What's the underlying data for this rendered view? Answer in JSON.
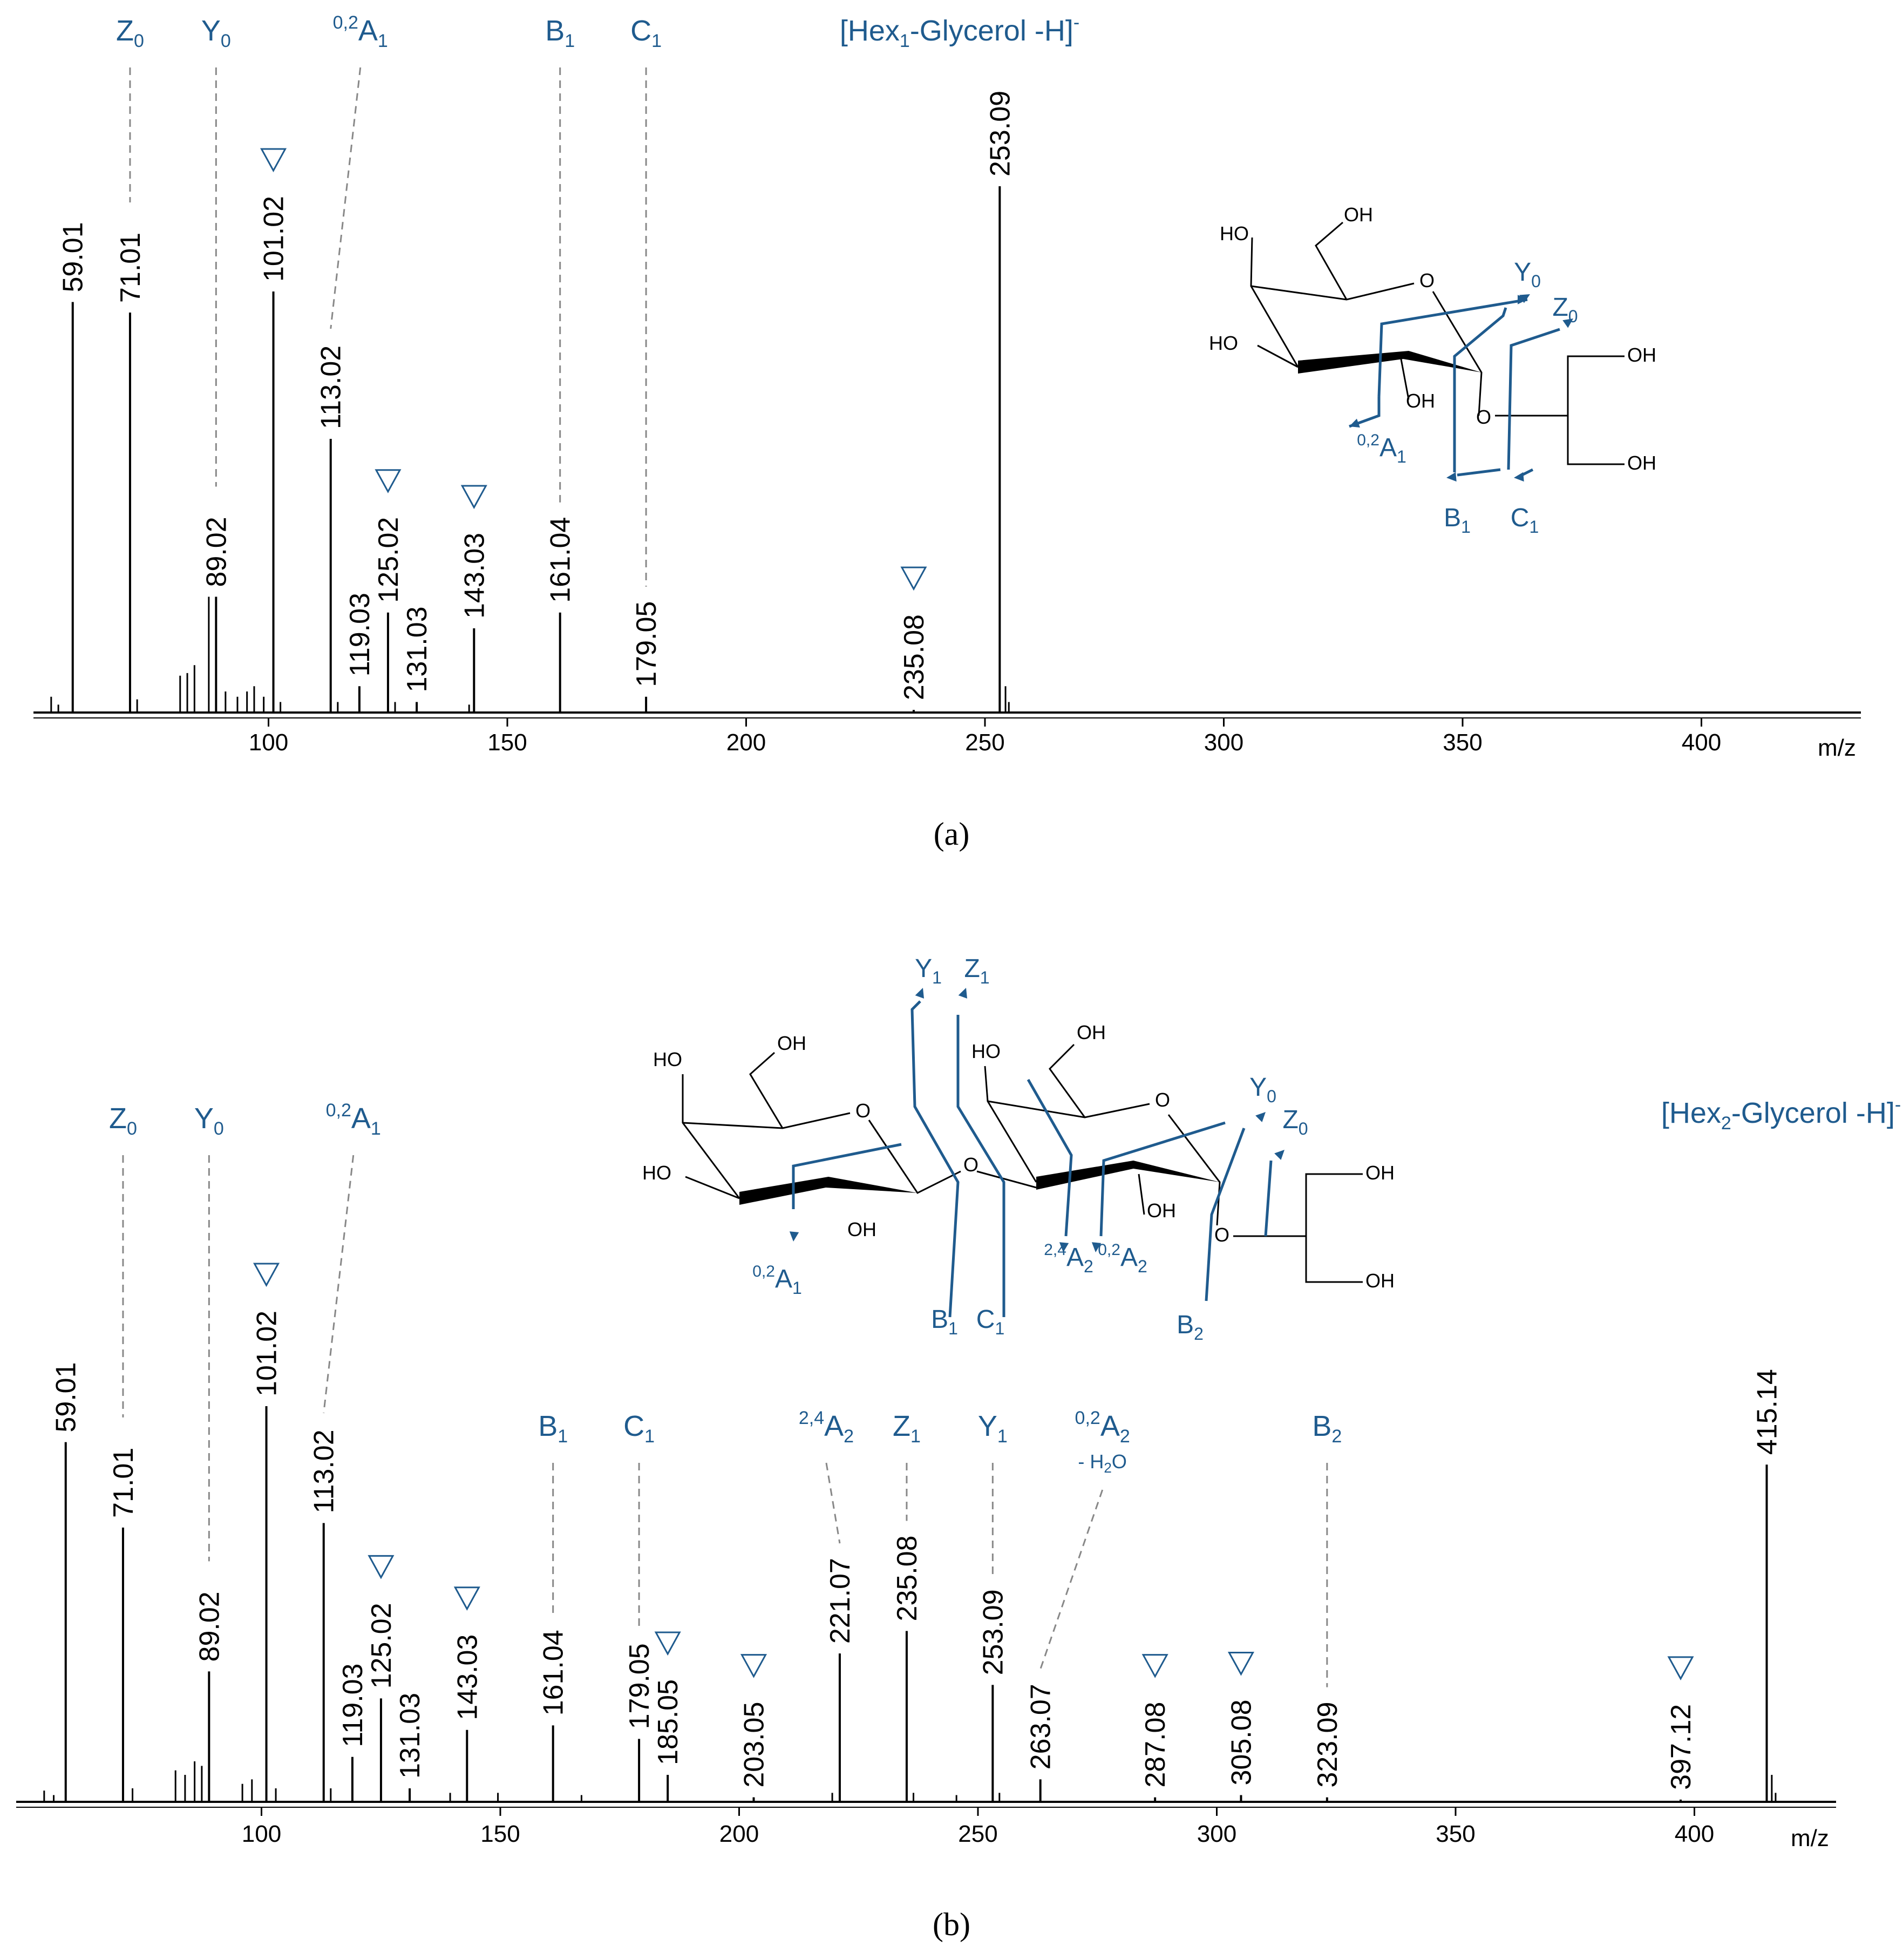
{
  "figure": {
    "accent_color": "#1f5b8e",
    "line_color": "#000000",
    "dash_color": "#888888",
    "neutral_loss_icon": "triangle-down-icon"
  },
  "chart_data": [
    {
      "type": "bar",
      "panel": "a",
      "caption": "(a)",
      "xlabel": "m/z",
      "ylabel": "",
      "xlim": [
        52,
        433
      ],
      "ylim": [
        0,
        100
      ],
      "xticks": [
        100,
        150,
        200,
        250,
        300,
        350,
        400
      ],
      "precursor_label": {
        "text": "[Hex1-Glycerol -H]-",
        "main": "[Hex",
        "sub": "1",
        "rest": "-Glycerol -H]",
        "sup": "-"
      },
      "peaks": [
        {
          "mz": 59.01,
          "label": "59.01",
          "intensity": 78
        },
        {
          "mz": 71.01,
          "label": "71.01",
          "intensity": 76
        },
        {
          "mz": 89.02,
          "label": "89.02",
          "intensity": 22
        },
        {
          "mz": 101.02,
          "label": "101.02",
          "intensity": 80
        },
        {
          "mz": 113.02,
          "label": "113.02",
          "intensity": 52
        },
        {
          "mz": 119.03,
          "label": "119.03",
          "intensity": 5
        },
        {
          "mz": 125.02,
          "label": "125.02",
          "intensity": 19
        },
        {
          "mz": 131.03,
          "label": "131.03",
          "intensity": 2
        },
        {
          "mz": 143.03,
          "label": "143.03",
          "intensity": 16
        },
        {
          "mz": 161.04,
          "label": "161.04",
          "intensity": 19
        },
        {
          "mz": 179.05,
          "label": "179.05",
          "intensity": 3
        },
        {
          "mz": 235.08,
          "label": "235.08",
          "intensity": 0.5
        },
        {
          "mz": 253.09,
          "label": "253.09",
          "intensity": 100
        }
      ],
      "minor_peaks": [
        {
          "mz": 54.5,
          "intensity": 3
        },
        {
          "mz": 56.0,
          "intensity": 1.5
        },
        {
          "mz": 72.5,
          "intensity": 2.5
        },
        {
          "mz": 81.5,
          "intensity": 7
        },
        {
          "mz": 83.0,
          "intensity": 7.5
        },
        {
          "mz": 84.5,
          "intensity": 9
        },
        {
          "mz": 87.5,
          "intensity": 22
        },
        {
          "mz": 91.0,
          "intensity": 4
        },
        {
          "mz": 93.5,
          "intensity": 3
        },
        {
          "mz": 95.5,
          "intensity": 4
        },
        {
          "mz": 97.0,
          "intensity": 5
        },
        {
          "mz": 99.0,
          "intensity": 3
        },
        {
          "mz": 102.5,
          "intensity": 2
        },
        {
          "mz": 114.5,
          "intensity": 2
        },
        {
          "mz": 126.5,
          "intensity": 2
        },
        {
          "mz": 142.0,
          "intensity": 1.5
        },
        {
          "mz": 254.3,
          "intensity": 5
        },
        {
          "mz": 255.0,
          "intensity": 2
        }
      ],
      "neutral_loss_marks": [
        101.02,
        125.02,
        143.03,
        235.08
      ],
      "fragment_labels": [
        {
          "id": "z0",
          "base": "Z",
          "sub": "0",
          "pre": "",
          "mz": 71.01
        },
        {
          "id": "y0",
          "base": "Y",
          "sub": "0",
          "pre": "",
          "mz": 89.02
        },
        {
          "id": "a1-02",
          "base": "A",
          "sub": "1",
          "pre": "0,2",
          "mz": 113.02
        },
        {
          "id": "b1",
          "base": "B",
          "sub": "1",
          "pre": "",
          "mz": 161.04
        },
        {
          "id": "c1",
          "base": "C",
          "sub": "1",
          "pre": "",
          "mz": 179.05
        }
      ],
      "structure_labels": {
        "oh": "OH",
        "ho": "HO",
        "o": "O",
        "y0": "Y",
        "z0": "Z",
        "a1": "A",
        "b1": "B",
        "c1": "C",
        "s0": "0",
        "s1": "1",
        "p02": "0,2"
      }
    },
    {
      "type": "bar",
      "panel": "b",
      "caption": "(b)",
      "xlabel": "m/z",
      "ylabel": "",
      "xlim": [
        52,
        433
      ],
      "ylim": [
        0,
        100
      ],
      "xticks": [
        100,
        150,
        200,
        250,
        300,
        350,
        400
      ],
      "precursor_label": {
        "text": "[Hex2-Glycerol -H]-",
        "main": "[Hex",
        "sub": "2",
        "rest": "-Glycerol -H]",
        "sup": "-"
      },
      "peaks": [
        {
          "mz": 59.01,
          "label": "59.01",
          "intensity": 80
        },
        {
          "mz": 71.01,
          "label": "71.01",
          "intensity": 61
        },
        {
          "mz": 89.02,
          "label": "89.02",
          "intensity": 29
        },
        {
          "mz": 101.02,
          "label": "101.02",
          "intensity": 88
        },
        {
          "mz": 113.02,
          "label": "113.02",
          "intensity": 62
        },
        {
          "mz": 119.03,
          "label": "119.03",
          "intensity": 10
        },
        {
          "mz": 125.02,
          "label": "125.02",
          "intensity": 23
        },
        {
          "mz": 131.03,
          "label": "131.03",
          "intensity": 3
        },
        {
          "mz": 143.03,
          "label": "143.03",
          "intensity": 16
        },
        {
          "mz": 161.04,
          "label": "161.04",
          "intensity": 17
        },
        {
          "mz": 179.05,
          "label": "179.05",
          "intensity": 14
        },
        {
          "mz": 185.05,
          "label": "185.05",
          "intensity": 6
        },
        {
          "mz": 203.05,
          "label": "203.05",
          "intensity": 1
        },
        {
          "mz": 221.07,
          "label": "221.07",
          "intensity": 33
        },
        {
          "mz": 235.08,
          "label": "235.08",
          "intensity": 38
        },
        {
          "mz": 253.09,
          "label": "253.09",
          "intensity": 26
        },
        {
          "mz": 263.07,
          "label": "263.07",
          "intensity": 5
        },
        {
          "mz": 287.08,
          "label": "287.08",
          "intensity": 1
        },
        {
          "mz": 305.08,
          "label": "305.08",
          "intensity": 1.5
        },
        {
          "mz": 323.09,
          "label": "323.09",
          "intensity": 1
        },
        {
          "mz": 397.12,
          "label": "397.12",
          "intensity": 0.5
        },
        {
          "mz": 415.14,
          "label": "415.14",
          "intensity": 75
        }
      ],
      "minor_peaks": [
        {
          "mz": 54.5,
          "intensity": 2.5
        },
        {
          "mz": 56.5,
          "intensity": 1.5
        },
        {
          "mz": 73.0,
          "intensity": 3
        },
        {
          "mz": 82.0,
          "intensity": 7
        },
        {
          "mz": 84.0,
          "intensity": 6
        },
        {
          "mz": 86.0,
          "intensity": 9
        },
        {
          "mz": 87.5,
          "intensity": 8
        },
        {
          "mz": 96.0,
          "intensity": 4
        },
        {
          "mz": 98.0,
          "intensity": 5
        },
        {
          "mz": 103.0,
          "intensity": 3
        },
        {
          "mz": 114.5,
          "intensity": 3
        },
        {
          "mz": 139.5,
          "intensity": 2
        },
        {
          "mz": 149.5,
          "intensity": 2
        },
        {
          "mz": 167.0,
          "intensity": 1.5
        },
        {
          "mz": 203.0,
          "intensity": 1
        },
        {
          "mz": 219.5,
          "intensity": 2
        },
        {
          "mz": 236.5,
          "intensity": 2
        },
        {
          "mz": 245.5,
          "intensity": 1.5
        },
        {
          "mz": 254.5,
          "intensity": 2
        },
        {
          "mz": 416.2,
          "intensity": 6
        },
        {
          "mz": 417.0,
          "intensity": 2
        }
      ],
      "neutral_loss_marks": [
        101.02,
        125.02,
        143.03,
        185.05,
        203.05,
        287.08,
        305.08,
        397.12
      ],
      "fragment_labels": [
        {
          "id": "z0",
          "base": "Z",
          "sub": "0",
          "pre": "",
          "mz": 71.01
        },
        {
          "id": "y0",
          "base": "Y",
          "sub": "0",
          "pre": "",
          "mz": 89.02
        },
        {
          "id": "a1-02",
          "base": "A",
          "sub": "1",
          "pre": "0,2",
          "mz": 113.02
        },
        {
          "id": "b1",
          "base": "B",
          "sub": "1",
          "pre": "",
          "mz": 161.04
        },
        {
          "id": "c1",
          "base": "C",
          "sub": "1",
          "pre": "",
          "mz": 179.05
        },
        {
          "id": "a2-24",
          "base": "A",
          "sub": "2",
          "pre": "2,4",
          "mz": 221.07
        },
        {
          "id": "z1",
          "base": "Z",
          "sub": "1",
          "pre": "",
          "mz": 235.08
        },
        {
          "id": "y1",
          "base": "Y",
          "sub": "1",
          "pre": "",
          "mz": 253.09
        },
        {
          "id": "a2-02",
          "base": "A",
          "sub": "2",
          "pre": "0,2",
          "mz": 263.07,
          "note": "- H",
          "note_sub": "2",
          "note_rest": "O"
        },
        {
          "id": "b2",
          "base": "B",
          "sub": "2",
          "pre": "",
          "mz": 323.09
        }
      ],
      "structure_labels": {
        "oh": "OH",
        "ho": "HO",
        "o": "O",
        "y0": "Y",
        "z0": "Z",
        "y1": "Y",
        "z1": "Z",
        "a1": "A",
        "a2": "A",
        "b1": "B",
        "b2": "B",
        "c1": "C",
        "s0": "0",
        "s1": "1",
        "s2": "2",
        "p02": "0,2",
        "p24": "2,4"
      }
    }
  ]
}
